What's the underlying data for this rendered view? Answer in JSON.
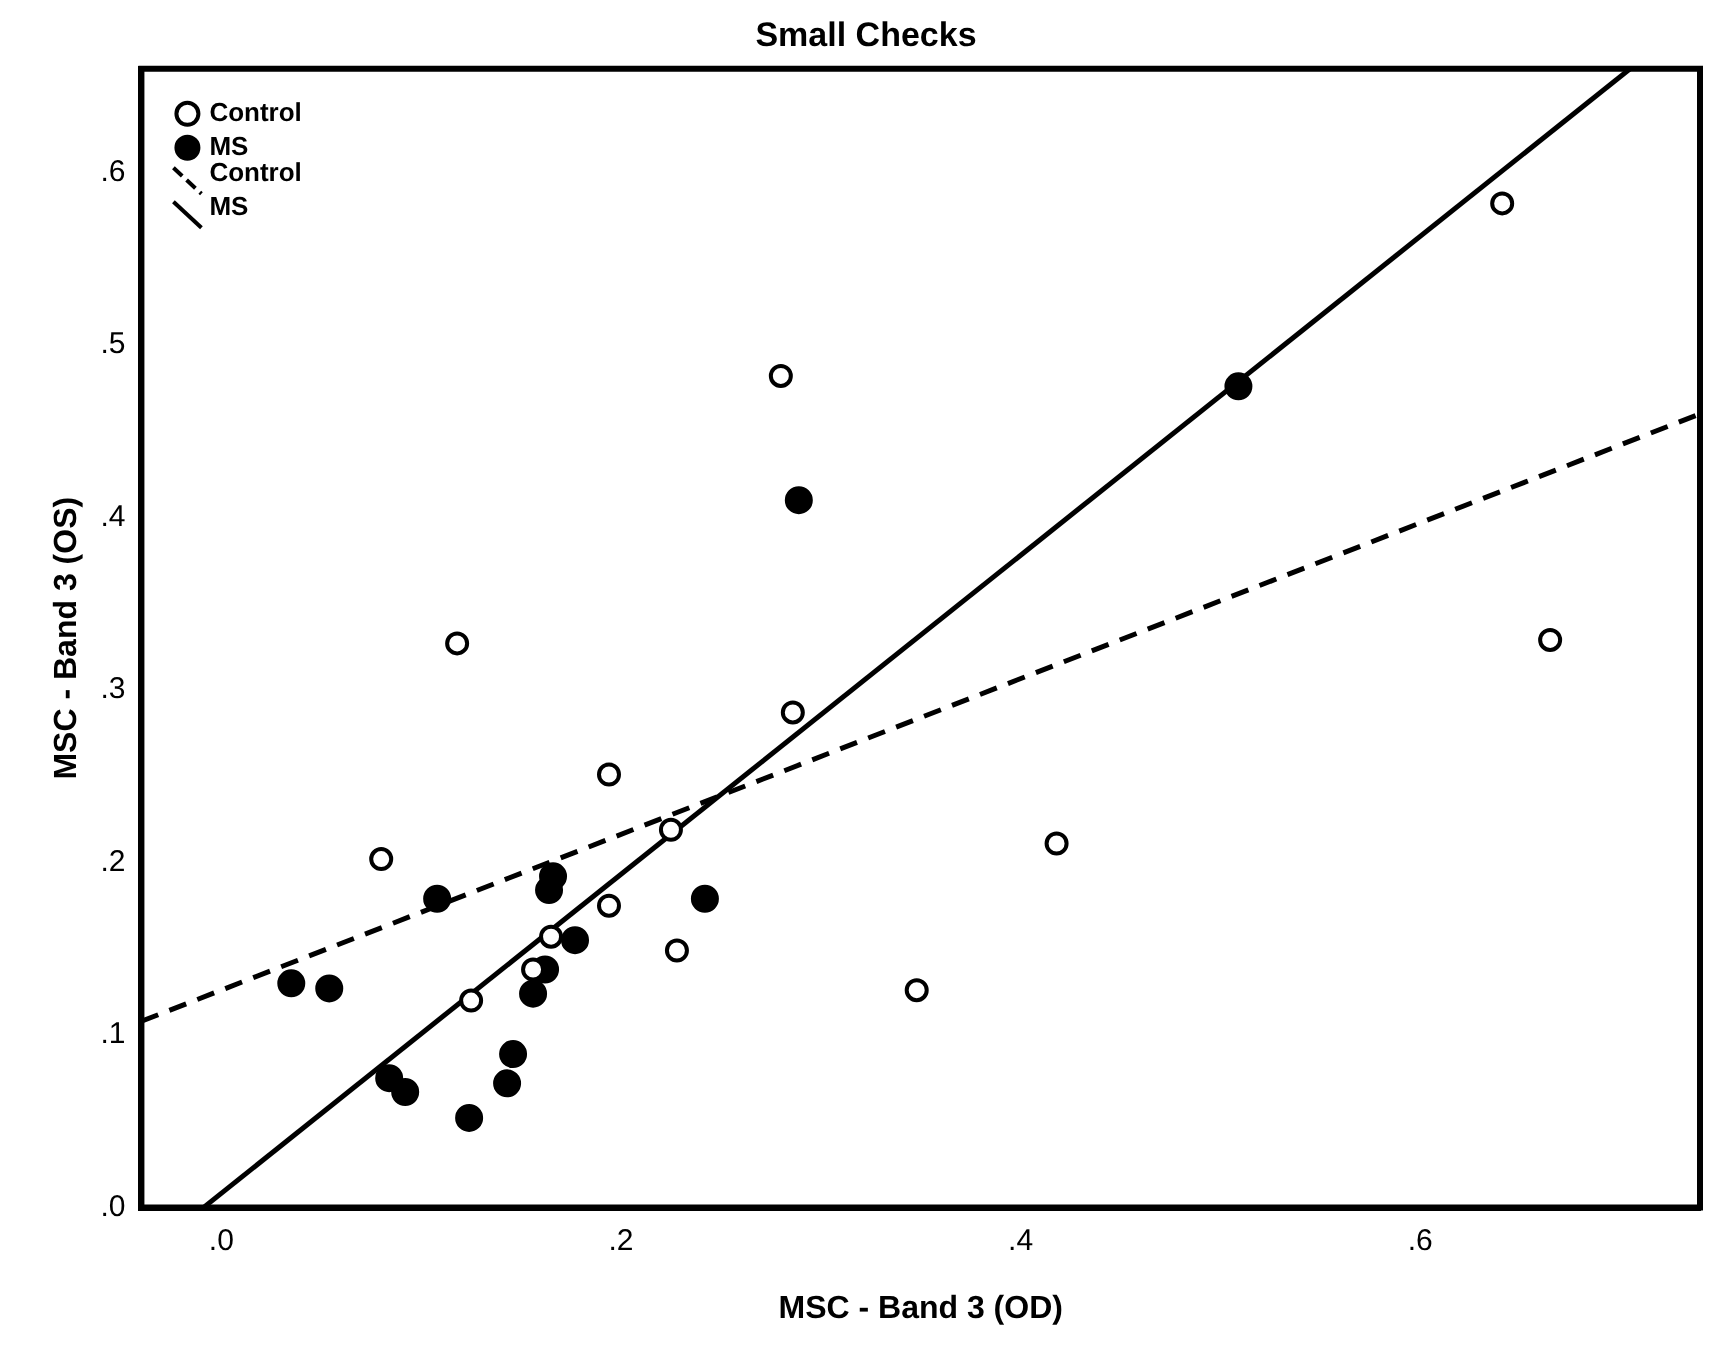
{
  "chart_data": {
    "type": "scatter",
    "title": "Small Checks",
    "xlabel": "MSC - Band 3 (OD)",
    "ylabel": "MSC - Band 3 (OS)",
    "xlim": [
      -0.04,
      0.74
    ],
    "ylim": [
      0,
      0.66
    ],
    "xticks": [
      {
        "value": 0,
        "label": ".0"
      },
      {
        "value": 0.2,
        "label": ".2"
      },
      {
        "value": 0.4,
        "label": ".4"
      },
      {
        "value": 0.6,
        "label": ".6"
      }
    ],
    "yticks": [
      {
        "value": 0,
        "label": ".0"
      },
      {
        "value": 0.1,
        "label": ".1"
      },
      {
        "value": 0.2,
        "label": ".2"
      },
      {
        "value": 0.3,
        "label": ".3"
      },
      {
        "value": 0.4,
        "label": ".4"
      },
      {
        "value": 0.5,
        "label": ".5"
      },
      {
        "value": 0.6,
        "label": ".6"
      }
    ],
    "grid": false,
    "legend": "top left",
    "series": [
      {
        "name": "Control",
        "type": "scatter",
        "marker": "circle",
        "color": "#000000",
        "x": [
          0.118,
          0.194,
          0.08,
          0.225,
          0.194,
          0.165,
          0.156,
          0.228,
          0.125,
          0.28,
          0.286,
          0.418,
          0.348,
          0.641,
          0.665
        ],
        "values": [
          0.327,
          0.251,
          0.202,
          0.219,
          0.175,
          0.157,
          0.138,
          0.149,
          0.12,
          0.482,
          0.287,
          0.211,
          0.126,
          0.582,
          0.329
        ]
      },
      {
        "name": "MS",
        "type": "scatter",
        "marker": "circle",
        "color": "#000000",
        "x": [
          0.035,
          0.054,
          0.108,
          0.166,
          0.164,
          0.177,
          0.162,
          0.156,
          0.242,
          0.146,
          0.143,
          0.084,
          0.092,
          0.124,
          0.289,
          0.509
        ],
        "values": [
          0.13,
          0.127,
          0.179,
          0.192,
          0.184,
          0.155,
          0.138,
          0.124,
          0.179,
          0.089,
          0.072,
          0.075,
          0.067,
          0.052,
          0.41,
          0.476
        ]
      },
      {
        "name": "Control",
        "type": "line",
        "marker": "none",
        "line_style": "dashed",
        "color": "#000000",
        "x": [
          -0.04,
          0.74
        ],
        "values": [
          0.108,
          0.46
        ]
      },
      {
        "name": "MS",
        "type": "line",
        "marker": "none",
        "line_style": "solid",
        "color": "#000000",
        "x": [
          -0.009,
          0.705
        ],
        "values": [
          0,
          0.66
        ]
      }
    ]
  }
}
